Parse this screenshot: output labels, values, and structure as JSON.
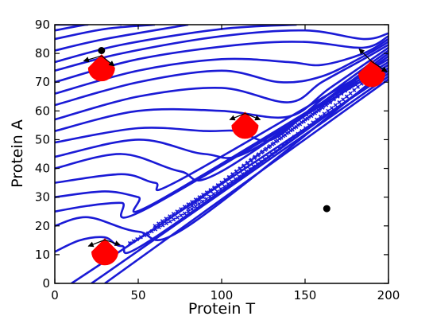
{
  "chart_data": {
    "type": "line",
    "xlabel": "Protein T",
    "ylabel": "Protein A",
    "xlim": [
      0,
      200
    ],
    "ylim": [
      0,
      90
    ],
    "xticks": [
      0,
      50,
      100,
      150,
      200
    ],
    "yticks": [
      0,
      10,
      20,
      30,
      40,
      50,
      60,
      70,
      80,
      90
    ],
    "grid": false,
    "colors": {
      "curve": "#1a1ad6",
      "marker": "#ff0000",
      "point": "#000000",
      "arrow": "#000000"
    },
    "series": [
      {
        "values": [
          [
            0,
            90
          ],
          [
            20,
            90
          ]
        ]
      },
      {
        "values": [
          [
            0,
            88
          ],
          [
            25,
            90.5
          ],
          [
            40,
            90
          ]
        ]
      },
      {
        "values": [
          [
            0,
            85
          ],
          [
            30,
            88.5
          ],
          [
            60,
            90
          ]
        ]
      },
      {
        "values": [
          [
            0,
            81
          ],
          [
            30,
            85
          ],
          [
            80,
            90
          ]
        ]
      },
      {
        "values": [
          [
            0,
            77
          ],
          [
            40,
            83
          ],
          [
            100,
            88.5
          ],
          [
            145,
            90
          ]
        ]
      },
      {
        "values": [
          [
            0,
            74
          ],
          [
            40,
            80
          ],
          [
            100,
            86
          ],
          [
            150,
            88
          ],
          [
            185,
            85
          ],
          [
            200,
            87
          ]
        ]
      },
      {
        "values": [
          [
            0,
            70
          ],
          [
            50,
            78
          ],
          [
            110,
            83
          ],
          [
            150,
            84
          ],
          [
            185,
            82
          ],
          [
            200,
            86
          ]
        ]
      },
      {
        "values": [
          [
            0,
            66
          ],
          [
            50,
            74
          ],
          [
            100,
            78
          ],
          [
            140,
            77
          ],
          [
            160,
            76
          ],
          [
            185,
            80
          ],
          [
            200,
            85
          ]
        ]
      },
      {
        "values": [
          [
            0,
            62
          ],
          [
            50,
            70
          ],
          [
            100,
            74
          ],
          [
            135,
            70
          ],
          [
            160,
            72
          ],
          [
            185,
            79
          ],
          [
            200,
            84
          ]
        ]
      },
      {
        "values": [
          [
            0,
            57
          ],
          [
            50,
            65
          ],
          [
            100,
            68
          ],
          [
            140,
            63
          ],
          [
            160,
            70
          ],
          [
            185,
            78
          ],
          [
            200,
            83
          ]
        ]
      },
      {
        "values": [
          [
            0,
            53
          ],
          [
            50,
            60
          ],
          [
            100,
            60
          ],
          [
            140,
            58
          ],
          [
            165,
            68
          ],
          [
            200,
            82
          ]
        ]
      },
      {
        "values": [
          [
            0,
            49
          ],
          [
            50,
            54
          ],
          [
            90,
            53
          ],
          [
            110,
            53
          ],
          [
            130,
            50
          ],
          [
            160,
            64
          ],
          [
            200,
            81
          ]
        ]
      },
      {
        "values": [
          [
            0,
            44
          ],
          [
            50,
            50
          ],
          [
            90,
            45
          ],
          [
            120,
            47
          ],
          [
            200,
            80
          ]
        ]
      },
      {
        "values": [
          [
            0,
            40
          ],
          [
            40,
            45
          ],
          [
            75,
            39
          ],
          [
            100,
            39
          ],
          [
            200,
            79
          ]
        ]
      },
      {
        "values": [
          [
            0,
            35
          ],
          [
            40,
            38
          ],
          [
            60,
            35
          ],
          [
            75,
            36
          ],
          [
            200,
            78
          ]
        ]
      },
      {
        "values": [
          [
            0,
            30
          ],
          [
            30,
            32
          ],
          [
            50,
            30
          ],
          [
            60,
            28
          ],
          [
            200,
            77
          ]
        ]
      },
      {
        "values": [
          [
            0,
            25
          ],
          [
            20,
            27
          ],
          [
            40,
            28
          ],
          [
            55,
            26
          ],
          [
            200,
            76
          ]
        ]
      },
      {
        "values": [
          [
            0,
            20
          ],
          [
            20,
            23
          ],
          [
            50,
            18
          ],
          [
            80,
            20
          ],
          [
            200,
            75
          ]
        ]
      },
      {
        "values": [
          [
            0,
            11
          ],
          [
            15,
            15
          ],
          [
            30,
            16
          ],
          [
            40,
            13
          ],
          [
            60,
            16
          ],
          [
            200,
            74
          ]
        ]
      },
      {
        "values": [
          [
            10,
            0
          ],
          [
            200,
            73
          ]
        ]
      },
      {
        "values": [
          [
            22,
            0
          ],
          [
            200,
            72
          ]
        ]
      },
      {
        "values": [
          [
            30,
            0
          ],
          [
            200,
            71
          ]
        ]
      }
    ],
    "marker_x": [
      [
        [
          45,
          14
        ],
        [
          80,
          25
        ],
        [
          130,
          45
        ],
        [
          175,
          65
        ],
        [
          195,
          75
        ]
      ],
      [
        [
          60,
          20
        ],
        [
          100,
          35
        ],
        [
          150,
          57
        ],
        [
          185,
          72
        ]
      ],
      [
        [
          80,
          26
        ],
        [
          120,
          44
        ],
        [
          165,
          63
        ],
        [
          190,
          74
        ]
      ]
    ],
    "points": [
      [
        28,
        81
      ],
      [
        163,
        26
      ]
    ],
    "markers": [
      {
        "x": 28,
        "y": 75,
        "arrows": [
          [
            -14,
            -4
          ],
          [
            10,
            -8
          ]
        ]
      },
      {
        "x": 114,
        "y": 55,
        "arrows": [
          [
            -12,
            -5
          ],
          [
            12,
            -5
          ]
        ]
      },
      {
        "x": 190,
        "y": 73,
        "arrows": [
          [
            -10,
            10
          ],
          [
            12,
            -8
          ]
        ]
      },
      {
        "x": 30,
        "y": 11,
        "arrows": [
          [
            -13,
            -5
          ],
          [
            12,
            -4
          ]
        ]
      }
    ]
  }
}
